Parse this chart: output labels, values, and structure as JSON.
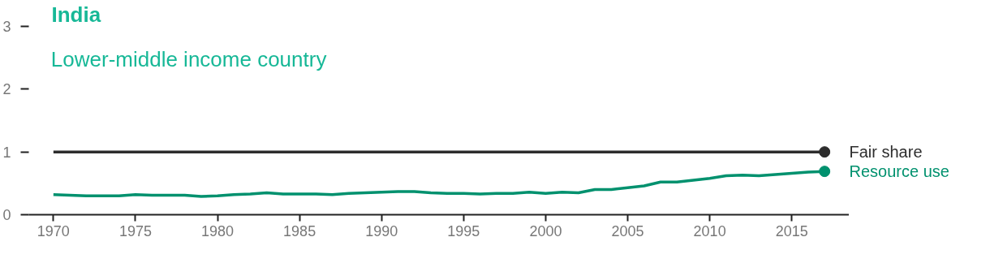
{
  "chart_data": {
    "type": "line",
    "title": "India",
    "subtitle": "Lower-middle income country",
    "x": [
      1970,
      1971,
      1972,
      1973,
      1974,
      1975,
      1976,
      1977,
      1978,
      1979,
      1980,
      1981,
      1982,
      1983,
      1984,
      1985,
      1986,
      1987,
      1988,
      1989,
      1990,
      1991,
      1992,
      1993,
      1994,
      1995,
      1996,
      1997,
      1998,
      1999,
      2000,
      2001,
      2002,
      2003,
      2004,
      2005,
      2006,
      2007,
      2008,
      2009,
      2010,
      2011,
      2012,
      2013,
      2014,
      2015,
      2016,
      2017
    ],
    "series": [
      {
        "name": "Fair share",
        "color": "#2d2d2d",
        "x": [
          1970,
          2017
        ],
        "values": [
          1,
          1
        ]
      },
      {
        "name": "Resource use",
        "color": "#00916e",
        "values": [
          0.32,
          0.31,
          0.3,
          0.3,
          0.3,
          0.32,
          0.31,
          0.31,
          0.31,
          0.29,
          0.3,
          0.32,
          0.33,
          0.35,
          0.33,
          0.33,
          0.33,
          0.32,
          0.34,
          0.35,
          0.36,
          0.37,
          0.37,
          0.35,
          0.34,
          0.34,
          0.33,
          0.34,
          0.34,
          0.36,
          0.34,
          0.36,
          0.35,
          0.4,
          0.4,
          0.43,
          0.46,
          0.52,
          0.52,
          0.55,
          0.58,
          0.62,
          0.63,
          0.62,
          0.64,
          0.66,
          0.68,
          0.69
        ]
      }
    ],
    "xlim": [
      1968.5,
      2018.5
    ],
    "xticks": [
      1970,
      1975,
      1980,
      1985,
      1990,
      1995,
      2000,
      2005,
      2010,
      2015
    ],
    "ylim": [
      0,
      3
    ],
    "yticks": [
      0,
      1,
      2,
      3
    ],
    "grid": false
  }
}
